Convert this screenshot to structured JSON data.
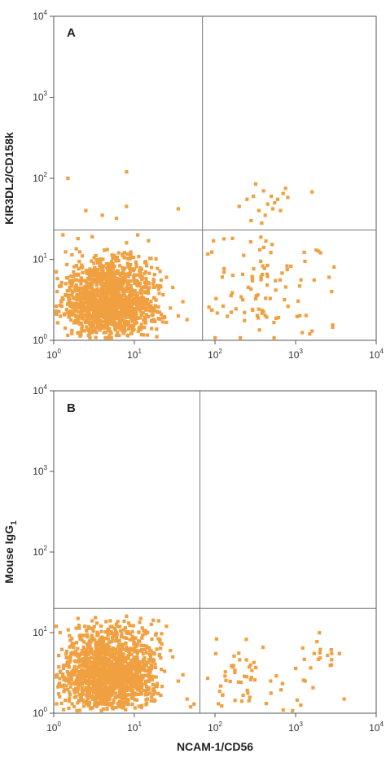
{
  "chart_data": [
    {
      "type": "scatter",
      "panel_label": "A",
      "xlabel": "",
      "ylabel": "KIR3DL2/CD158k",
      "ylabel_sub": "",
      "x_scale": "log",
      "y_scale": "log",
      "xlim": [
        1,
        10000
      ],
      "ylim": [
        1,
        10000
      ],
      "x_ticks": [
        {
          "base": "10",
          "exp": "0"
        },
        {
          "base": "10",
          "exp": "1"
        },
        {
          "base": "10",
          "exp": "2"
        },
        {
          "base": "10",
          "exp": "3"
        },
        {
          "base": "10",
          "exp": "4"
        }
      ],
      "y_ticks": [
        {
          "base": "10",
          "exp": "0"
        },
        {
          "base": "10",
          "exp": "1"
        },
        {
          "base": "10",
          "exp": "2"
        },
        {
          "base": "10",
          "exp": "3"
        },
        {
          "base": "10",
          "exp": "4"
        }
      ],
      "gate": {
        "x": 70,
        "y": 23
      },
      "point_color": "#f0a040",
      "clusters": [
        {
          "x_range": [
            1,
            25
          ],
          "y_range": [
            1,
            14
          ],
          "count": 1400,
          "center_x": 5,
          "center_y": 3
        },
        {
          "x_range": [
            80,
            3000
          ],
          "y_range": [
            1,
            20
          ],
          "count": 95,
          "center_x": 350,
          "center_y": 4
        }
      ],
      "points": [
        [
          1.5,
          100
        ],
        [
          8,
          120
        ],
        [
          8,
          45
        ],
        [
          6,
          32
        ],
        [
          4,
          35
        ],
        [
          2.5,
          40
        ],
        [
          35,
          42
        ],
        [
          200,
          45
        ],
        [
          250,
          55
        ],
        [
          300,
          60
        ],
        [
          320,
          85
        ],
        [
          350,
          40
        ],
        [
          400,
          70
        ],
        [
          420,
          35
        ],
        [
          500,
          60
        ],
        [
          550,
          50
        ],
        [
          600,
          55
        ],
        [
          650,
          40
        ],
        [
          700,
          65
        ],
        [
          750,
          75
        ],
        [
          800,
          58
        ],
        [
          1600,
          68
        ],
        [
          280,
          30
        ],
        [
          380,
          28
        ],
        [
          450,
          48
        ],
        [
          520,
          42
        ],
        [
          30,
          4.5
        ],
        [
          40,
          3
        ],
        [
          35,
          2
        ],
        [
          45,
          1.8
        ],
        [
          28,
          2.5
        ],
        [
          25,
          6
        ],
        [
          2600,
          6
        ],
        [
          2800,
          4
        ],
        [
          3000,
          8
        ],
        [
          1800,
          13
        ],
        [
          1500,
          1.2
        ],
        [
          1600,
          1.3
        ],
        [
          1,
          7
        ],
        [
          1.1,
          4
        ],
        [
          1.3,
          20
        ],
        [
          2,
          18
        ],
        [
          3,
          19
        ],
        [
          8,
          16
        ],
        [
          11,
          20
        ],
        [
          15,
          17
        ]
      ]
    },
    {
      "type": "scatter",
      "panel_label": "B",
      "xlabel": "NCAM-1/CD56",
      "ylabel": "Mouse IgG",
      "ylabel_sub": "1",
      "x_scale": "log",
      "y_scale": "log",
      "xlim": [
        1,
        10000
      ],
      "ylim": [
        1,
        10000
      ],
      "x_ticks": [
        {
          "base": "10",
          "exp": "0"
        },
        {
          "base": "10",
          "exp": "1"
        },
        {
          "base": "10",
          "exp": "2"
        },
        {
          "base": "10",
          "exp": "3"
        },
        {
          "base": "10",
          "exp": "4"
        }
      ],
      "y_ticks": [
        {
          "base": "10",
          "exp": "0"
        },
        {
          "base": "10",
          "exp": "1"
        },
        {
          "base": "10",
          "exp": "2"
        },
        {
          "base": "10",
          "exp": "3"
        },
        {
          "base": "10",
          "exp": "4"
        }
      ],
      "gate": {
        "x": 65,
        "y": 20
      },
      "point_color": "#f0a040",
      "clusters": [
        {
          "x_range": [
            1,
            25
          ],
          "y_range": [
            1,
            16
          ],
          "count": 1400,
          "center_x": 5,
          "center_y": 3
        },
        {
          "x_range": [
            80,
            3000
          ],
          "y_range": [
            1,
            11
          ],
          "count": 70,
          "center_x": 300,
          "center_y": 3
        }
      ],
      "points": [
        [
          30,
          5
        ],
        [
          40,
          3
        ],
        [
          35,
          2.5
        ],
        [
          45,
          1.5
        ],
        [
          28,
          6
        ],
        [
          50,
          1.2
        ],
        [
          55,
          1.3
        ],
        [
          4000,
          1.5
        ],
        [
          3500,
          5.5
        ],
        [
          2800,
          5.5
        ],
        [
          1700,
          5.5
        ],
        [
          2000,
          5.6
        ],
        [
          1,
          12
        ],
        [
          1.2,
          10
        ],
        [
          2,
          15
        ],
        [
          3,
          14
        ],
        [
          8,
          16
        ],
        [
          12,
          15
        ],
        [
          20,
          14
        ],
        [
          25,
          12
        ]
      ]
    }
  ]
}
